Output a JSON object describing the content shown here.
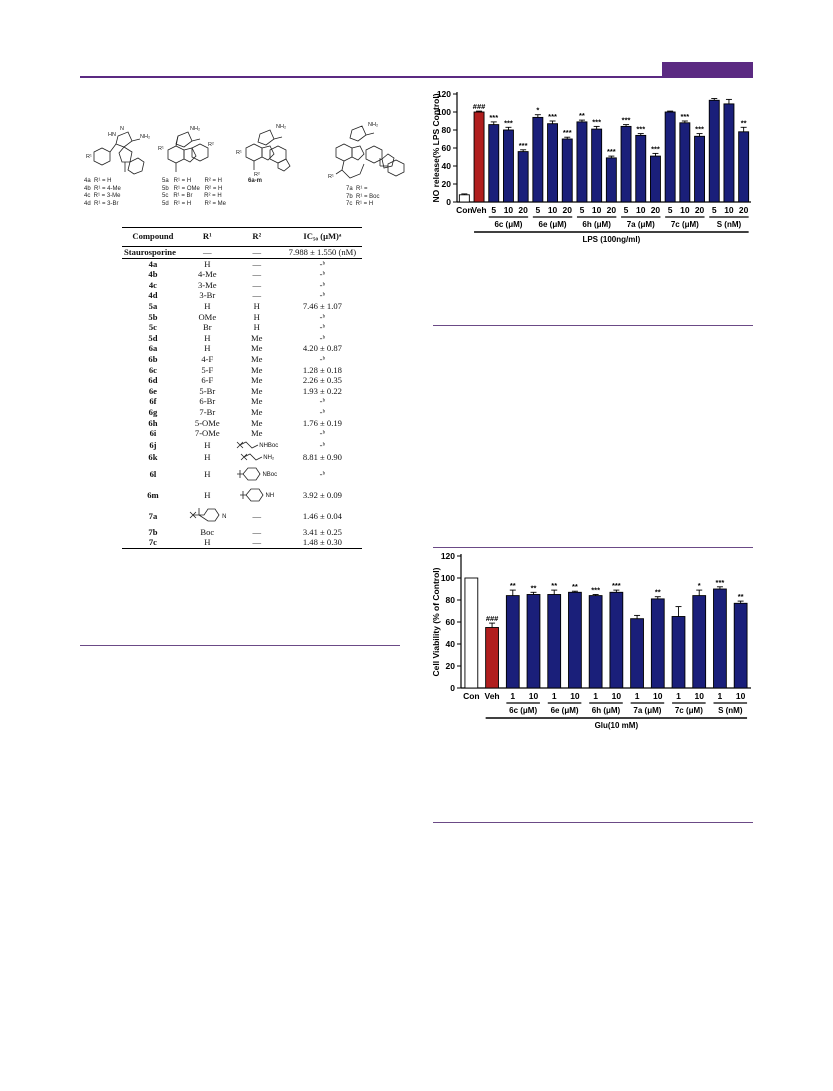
{
  "page": {
    "accent_color": "#5b2a82"
  },
  "structures": [
    {
      "id": "4a-d",
      "caption": "4a  R¹ = H\n4b  R¹ = 4-Me\n4c  R¹ = 3-Me\n4d  R¹ = 3-Br",
      "label_r": "R¹",
      "label_nh2": "NH₂",
      "label_hn": "HN",
      "label_n": "N"
    },
    {
      "id": "5a-d",
      "caption": "5a   R¹ = H        R² = H\n5b   R¹ = OMe   R² = H\n5c   R¹ = Br       R² = H\n5d   R¹ = H        R² = Me",
      "label_r1": "R¹",
      "label_r2": "R²",
      "label_nh2": "NH₂"
    },
    {
      "id": "6a-m",
      "caption": "6a-m",
      "label_r1": "R¹",
      "label_r2": "R²",
      "label_nh2": "NH₂"
    },
    {
      "id": "7a-c",
      "caption": "7a  R¹ =\n7b  R¹ = Boc\n7c  R¹ = H",
      "label_r1": "R¹",
      "label_nh2": "NH₂"
    }
  ],
  "table": {
    "headers": [
      "Compound",
      "R¹",
      "R²",
      "IC₅₀ (μM)ᵃ"
    ],
    "rows": [
      {
        "compound": "Staurosporine",
        "r1": "—",
        "r2": "—",
        "ic50": "7.988 ± 1.550 (nM)"
      },
      {
        "compound": "4a",
        "r1": "H",
        "r2": "—",
        "ic50": "-ᵇ"
      },
      {
        "compound": "4b",
        "r1": "4-Me",
        "r2": "—",
        "ic50": "-ᵇ"
      },
      {
        "compound": "4c",
        "r1": "3-Me",
        "r2": "—",
        "ic50": "-ᵇ"
      },
      {
        "compound": "4d",
        "r1": "3-Br",
        "r2": "—",
        "ic50": "-ᵇ"
      },
      {
        "compound": "5a",
        "r1": "H",
        "r2": "H",
        "ic50": "7.46 ± 1.07"
      },
      {
        "compound": "5b",
        "r1": "OMe",
        "r2": "H",
        "ic50": "-ᵇ"
      },
      {
        "compound": "5c",
        "r1": "Br",
        "r2": "H",
        "ic50": "-ᵇ"
      },
      {
        "compound": "5d",
        "r1": "H",
        "r2": "Me",
        "ic50": "-ᵇ"
      },
      {
        "compound": "6a",
        "r1": "H",
        "r2": "Me",
        "ic50": "4.20 ± 0.87"
      },
      {
        "compound": "6b",
        "r1": "4-F",
        "r2": "Me",
        "ic50": "-ᵇ"
      },
      {
        "compound": "6c",
        "r1": "5-F",
        "r2": "Me",
        "ic50": "1.28 ± 0.18"
      },
      {
        "compound": "6d",
        "r1": "6-F",
        "r2": "Me",
        "ic50": "2.26 ± 0.35"
      },
      {
        "compound": "6e",
        "r1": "5-Br",
        "r2": "Me",
        "ic50": "1.93 ± 0.22"
      },
      {
        "compound": "6f",
        "r1": "6-Br",
        "r2": "Me",
        "ic50": "-ᵇ"
      },
      {
        "compound": "6g",
        "r1": "7-Br",
        "r2": "Me",
        "ic50": "-ᵇ"
      },
      {
        "compound": "6h",
        "r1": "5-OMe",
        "r2": "Me",
        "ic50": "1.76 ± 0.19"
      },
      {
        "compound": "6i",
        "r1": "7-OMe",
        "r2": "Me",
        "ic50": "-ᵇ"
      },
      {
        "compound": "6j",
        "r1": "H",
        "r2": "NHBoc",
        "r2_structure": "chain",
        "ic50": "-ᵇ"
      },
      {
        "compound": "6k",
        "r1": "H",
        "r2": "NH₂",
        "r2_structure": "chain",
        "ic50": "8.81 ± 0.90"
      },
      {
        "compound": "6l",
        "r1": "H",
        "r2": "NBoc",
        "r2_structure": "piperidine",
        "ic50": "-ᵇ"
      },
      {
        "compound": "6m",
        "r1": "H",
        "r2": "NH",
        "r2_structure": "piperidine",
        "ic50": "3.92 ± 0.09"
      },
      {
        "compound": "7a",
        "r1": "N",
        "r1_structure": "piperidine-carbonyl",
        "r2": "—",
        "ic50": "1.46 ± 0.04"
      },
      {
        "compound": "7b",
        "r1": "Boc",
        "r2": "—",
        "ic50": "3.41 ± 0.25"
      },
      {
        "compound": "7c",
        "r1": "H",
        "r2": "—",
        "ic50": "1.48 ± 0.30"
      }
    ]
  },
  "chart_data": [
    {
      "type": "bar",
      "ylabel": "NO release(% LPS Control)",
      "ylim": [
        0,
        120
      ],
      "yticks": [
        0,
        20,
        40,
        60,
        80,
        100,
        120
      ],
      "bar_color": "#1a1f7a",
      "veh_color": "#b01e1e",
      "categories": [
        "Con",
        "Veh",
        "5",
        "10",
        "20",
        "5",
        "10",
        "20",
        "5",
        "10",
        "20",
        "5",
        "10",
        "20",
        "5",
        "10",
        "20",
        "5",
        "10",
        "20"
      ],
      "values": [
        8,
        100,
        86,
        80,
        56,
        94,
        87,
        70,
        89,
        81,
        49,
        84,
        74,
        51,
        100,
        88,
        73,
        113,
        109,
        78
      ],
      "errors": [
        1,
        1,
        3,
        3,
        2,
        3,
        3,
        2,
        2,
        3,
        2,
        2,
        2,
        3,
        1,
        2,
        3,
        2,
        5,
        5
      ],
      "sig": [
        "",
        "###",
        "***",
        "***",
        "***",
        "*",
        "***",
        "***",
        "**",
        "***",
        "***",
        "***",
        "***",
        "***",
        "",
        "***",
        "***",
        "",
        "",
        "**"
      ],
      "groups": [
        {
          "label": "6c (μM)",
          "start": 2,
          "end": 4
        },
        {
          "label": "6e (μM)",
          "start": 5,
          "end": 7
        },
        {
          "label": "6h (μM)",
          "start": 8,
          "end": 10
        },
        {
          "label": "7a (μM)",
          "start": 11,
          "end": 13
        },
        {
          "label": "7c (μM)",
          "start": 14,
          "end": 16
        },
        {
          "label": "S (nM)",
          "start": 17,
          "end": 19
        }
      ],
      "treatment_label": "LPS (100ng/ml)",
      "treatment_start": 1,
      "treatment_end": 19
    },
    {
      "type": "bar",
      "ylabel": "Cell Viability (% of Control)",
      "ylim": [
        0,
        120
      ],
      "yticks": [
        0,
        20,
        40,
        60,
        80,
        100,
        120
      ],
      "bar_color": "#1a1f7a",
      "veh_color": "#b01e1e",
      "categories": [
        "Con",
        "Veh",
        "1",
        "10",
        "1",
        "10",
        "1",
        "10",
        "1",
        "10",
        "1",
        "10",
        "1",
        "10"
      ],
      "values": [
        100,
        55,
        84,
        85,
        85,
        87,
        84,
        87,
        63,
        81,
        65,
        84,
        90,
        77
      ],
      "errors": [
        0,
        4,
        5,
        2,
        4,
        1,
        1,
        2,
        3,
        2,
        9,
        5,
        2,
        2
      ],
      "sig": [
        "",
        "###",
        "**",
        "**",
        "**",
        "**",
        "***",
        "***",
        "",
        "**",
        "",
        "*",
        "***",
        "**"
      ],
      "groups": [
        {
          "label": "6c (μM)",
          "start": 2,
          "end": 3
        },
        {
          "label": "6e (μM)",
          "start": 4,
          "end": 5
        },
        {
          "label": "6h (μM)",
          "start": 6,
          "end": 7
        },
        {
          "label": "7a (μM)",
          "start": 8,
          "end": 9
        },
        {
          "label": "7c (μM)",
          "start": 10,
          "end": 11
        },
        {
          "label": "S (nM)",
          "start": 12,
          "end": 13
        }
      ],
      "treatment_label": "Glu(10 mM)",
      "treatment_start": 1,
      "treatment_end": 13
    }
  ]
}
